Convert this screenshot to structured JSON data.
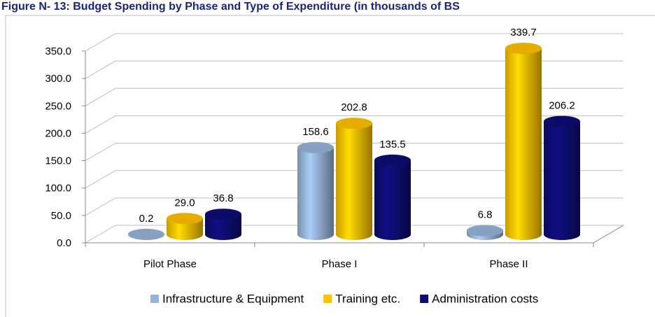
{
  "chart_data": {
    "type": "bar3d",
    "title": "Figure N- 13: Budget Spending by Phase and Type of Expenditure (in thousands of BS",
    "categories": [
      "Pilot Phase",
      "Phase I",
      "Phase II"
    ],
    "series": [
      {
        "name": "Infrastructure & Equipment",
        "color": "#95b3d7",
        "values": [
          0.2,
          158.6,
          6.8
        ],
        "value_labels": [
          "0.2",
          "158.6",
          "6.8"
        ]
      },
      {
        "name": "Training etc.",
        "color": "#ffc000",
        "values": [
          29,
          202.8,
          339.7
        ],
        "value_labels": [
          "29.0",
          "202.8",
          "339.7"
        ]
      },
      {
        "name": "Administration costs",
        "color": "#0d0d73",
        "values": [
          36.8,
          135.5,
          206.2
        ],
        "value_labels": [
          "36.8",
          "135.5",
          "206.2"
        ]
      }
    ],
    "ylim": [
      0,
      350
    ],
    "yticks": [
      {
        "value": 0,
        "label": "0.0"
      },
      {
        "value": 50,
        "label": "50.0"
      },
      {
        "value": 100,
        "label": "100.0"
      },
      {
        "value": 150,
        "label": "150.0"
      },
      {
        "value": 200,
        "label": "200.0"
      },
      {
        "value": 250,
        "label": "250.0"
      },
      {
        "value": 300,
        "label": "300.0"
      },
      {
        "value": 350,
        "label": "350.0"
      }
    ],
    "grid": true,
    "legend": "bottom"
  }
}
